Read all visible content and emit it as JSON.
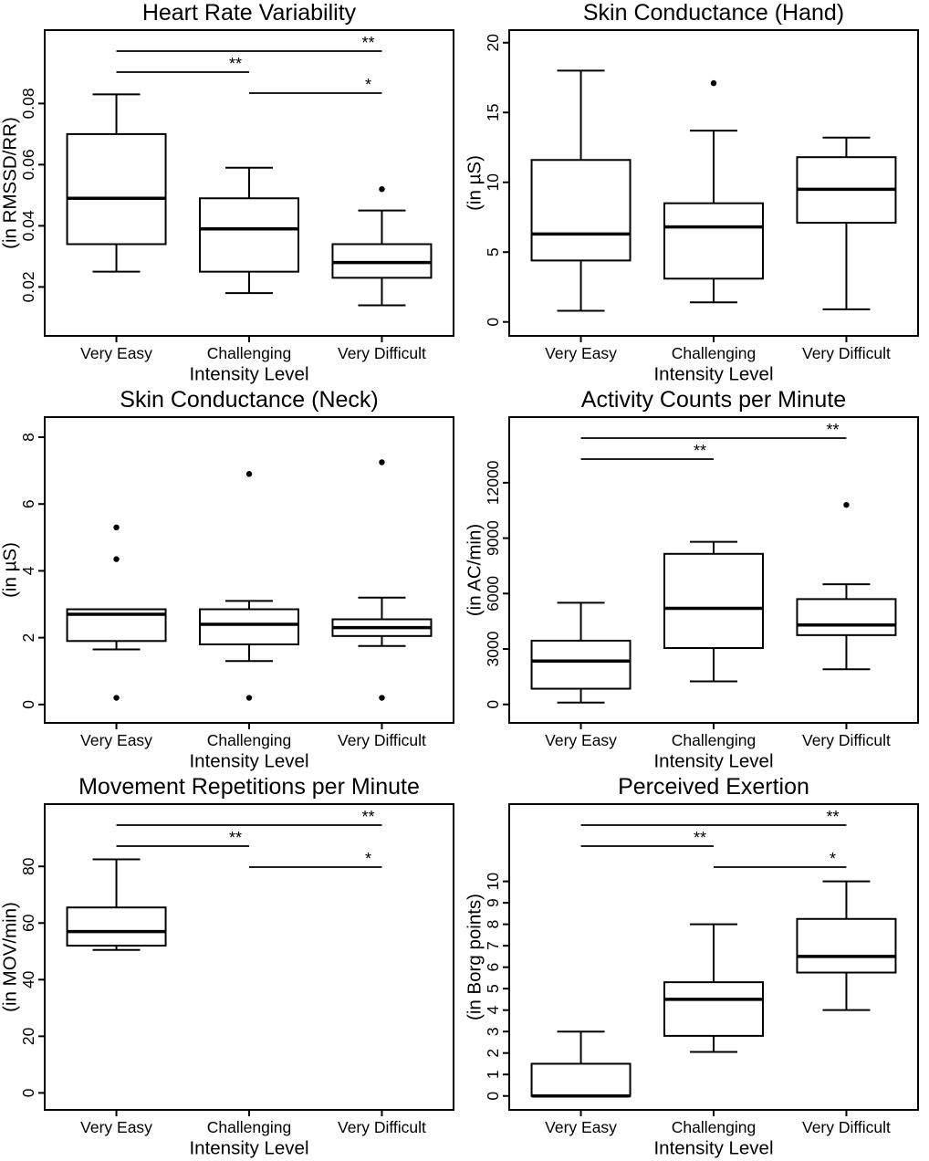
{
  "colors": {
    "foreground": "#000000",
    "background": "#ffffff"
  },
  "figure_description": "Six boxplot panels comparing physiological and subjective measures across exercise intensity levels",
  "chart_data": [
    {
      "type": "boxplot",
      "title": "Heart Rate Variability",
      "ylabel": "(in RMSSD/RR)",
      "xlabel": "Intensity Level",
      "categories": [
        "Very Easy",
        "Challenging",
        "Very Difficult"
      ],
      "ylim": [
        0.004,
        0.104
      ],
      "yticks": [
        0.02,
        0.04,
        0.06,
        0.08
      ],
      "ytick_labels": [
        "0.02",
        "0.04",
        "0.06",
        "0.08"
      ],
      "grid": false,
      "boxes": [
        {
          "whisker_low": 0.025,
          "q1": 0.034,
          "median": 0.049,
          "q3": 0.07,
          "whisker_high": 0.083,
          "outliers": []
        },
        {
          "whisker_low": 0.018,
          "q1": 0.025,
          "median": 0.039,
          "q3": 0.049,
          "whisker_high": 0.059,
          "outliers": []
        },
        {
          "whisker_low": 0.014,
          "q1": 0.023,
          "median": 0.028,
          "q3": 0.034,
          "whisker_high": 0.045,
          "outliers": [
            0.052
          ]
        }
      ],
      "significance": [
        {
          "pair": [
            "Very Easy",
            "Very Difficult"
          ],
          "label": "**",
          "level": 0
        },
        {
          "pair": [
            "Very Easy",
            "Challenging"
          ],
          "label": "**",
          "level": 1
        },
        {
          "pair": [
            "Challenging",
            "Very Difficult"
          ],
          "label": "*",
          "level": 2
        }
      ]
    },
    {
      "type": "boxplot",
      "title": "Skin Conductance (Hand)",
      "ylabel": "(in µS)",
      "xlabel": "Intensity Level",
      "categories": [
        "Very Easy",
        "Challenging",
        "Very Difficult"
      ],
      "ylim": [
        -1.0,
        20.9
      ],
      "yticks": [
        0,
        5,
        10,
        15,
        20
      ],
      "ytick_labels": [
        "0",
        "5",
        "10",
        "15",
        "20"
      ],
      "grid": false,
      "boxes": [
        {
          "whisker_low": 0.8,
          "q1": 4.4,
          "median": 6.3,
          "q3": 11.6,
          "whisker_high": 18.0,
          "outliers": []
        },
        {
          "whisker_low": 1.4,
          "q1": 3.1,
          "median": 6.8,
          "q3": 8.5,
          "whisker_high": 13.7,
          "outliers": [
            17.1
          ]
        },
        {
          "whisker_low": 0.9,
          "q1": 7.1,
          "median": 9.5,
          "q3": 11.8,
          "whisker_high": 13.2,
          "outliers": []
        }
      ],
      "significance": []
    },
    {
      "type": "boxplot",
      "title": "Skin Conductance (Neck)",
      "ylabel": "(in µS)",
      "xlabel": "Intensity Level",
      "categories": [
        "Very Easy",
        "Challenging",
        "Very Difficult"
      ],
      "ylim": [
        -0.55,
        8.6
      ],
      "yticks": [
        0,
        2,
        4,
        6,
        8
      ],
      "ytick_labels": [
        "0",
        "2",
        "4",
        "6",
        "8"
      ],
      "grid": false,
      "boxes": [
        {
          "whisker_low": 1.65,
          "q1": 1.9,
          "median": 2.7,
          "q3": 2.85,
          "whisker_high": 2.85,
          "outliers": [
            5.3,
            4.35,
            0.2
          ]
        },
        {
          "whisker_low": 1.3,
          "q1": 1.8,
          "median": 2.4,
          "q3": 2.85,
          "whisker_high": 3.1,
          "outliers": [
            6.9,
            0.2
          ]
        },
        {
          "whisker_low": 1.75,
          "q1": 2.05,
          "median": 2.3,
          "q3": 2.55,
          "whisker_high": 3.2,
          "outliers": [
            7.25,
            0.2
          ]
        }
      ],
      "significance": []
    },
    {
      "type": "boxplot",
      "title": "Activity Counts per Minute",
      "ylabel": "(in AC/min)",
      "xlabel": "Intensity Level",
      "categories": [
        "Very Easy",
        "Challenging",
        "Very Difficult"
      ],
      "ylim": [
        -1000,
        15550
      ],
      "yticks": [
        0,
        3000,
        6000,
        9000,
        12000
      ],
      "ytick_labels": [
        "0",
        "3000",
        "6000",
        "9000",
        "12000"
      ],
      "grid": false,
      "boxes": [
        {
          "whisker_low": 100,
          "q1": 850,
          "median": 2350,
          "q3": 3450,
          "whisker_high": 5500,
          "outliers": []
        },
        {
          "whisker_low": 1250,
          "q1": 3050,
          "median": 5200,
          "q3": 8150,
          "whisker_high": 8800,
          "outliers": []
        },
        {
          "whisker_low": 1900,
          "q1": 3750,
          "median": 4300,
          "q3": 5700,
          "whisker_high": 6500,
          "outliers": [
            10800
          ]
        }
      ],
      "significance": [
        {
          "pair": [
            "Very Easy",
            "Very Difficult"
          ],
          "label": "**",
          "level": 0
        },
        {
          "pair": [
            "Very Easy",
            "Challenging"
          ],
          "label": "**",
          "level": 1
        }
      ]
    },
    {
      "type": "boxplot",
      "title": "Movement Repetitions per Minute",
      "ylabel": "(in MOV/min)",
      "xlabel": "Intensity Level",
      "categories": [
        "Very Easy",
        "Challenging",
        "Very Difficult"
      ],
      "ylim": [
        -6,
        102
      ],
      "yticks": [
        0,
        20,
        40,
        60,
        80
      ],
      "ytick_labels": [
        "0",
        "20",
        "40",
        "60",
        "80"
      ],
      "grid": false,
      "boxes": [
        {
          "whisker_low": 50.5,
          "q1": 52,
          "median": 57,
          "q3": 65.5,
          "whisker_high": 82.5,
          "outliers": []
        },
        null,
        null
      ],
      "significance": [
        {
          "pair": [
            "Very Easy",
            "Very Difficult"
          ],
          "label": "**",
          "level": 0
        },
        {
          "pair": [
            "Very Easy",
            "Challenging"
          ],
          "label": "**",
          "level": 1
        },
        {
          "pair": [
            "Challenging",
            "Very Difficult"
          ],
          "label": "*",
          "level": 2
        }
      ]
    },
    {
      "type": "boxplot",
      "title": "Perceived Exertion",
      "ylabel": "(in Borg points)",
      "xlabel": "Intensity Level",
      "categories": [
        "Very Easy",
        "Challenging",
        "Very Difficult"
      ],
      "ylim": [
        -0.65,
        13.6
      ],
      "yticks": [
        0,
        1,
        2,
        3,
        4,
        5,
        6,
        7,
        8,
        9,
        10
      ],
      "ytick_labels": [
        "0",
        "1",
        "2",
        "3",
        "4",
        "5",
        "6",
        "7",
        "8",
        "9",
        "10"
      ],
      "grid": false,
      "boxes": [
        {
          "whisker_low": 0,
          "q1": 0,
          "median": 0,
          "q3": 1.5,
          "whisker_high": 3.0,
          "outliers": []
        },
        {
          "whisker_low": 2.05,
          "q1": 2.8,
          "median": 4.5,
          "q3": 5.3,
          "whisker_high": 8.0,
          "outliers": []
        },
        {
          "whisker_low": 4.0,
          "q1": 5.75,
          "median": 6.5,
          "q3": 8.25,
          "whisker_high": 10.0,
          "outliers": []
        }
      ],
      "significance": [
        {
          "pair": [
            "Very Easy",
            "Very Difficult"
          ],
          "label": "**",
          "level": 0
        },
        {
          "pair": [
            "Very Easy",
            "Challenging"
          ],
          "label": "**",
          "level": 1
        },
        {
          "pair": [
            "Challenging",
            "Very Difficult"
          ],
          "label": "*",
          "level": 2
        }
      ]
    }
  ]
}
